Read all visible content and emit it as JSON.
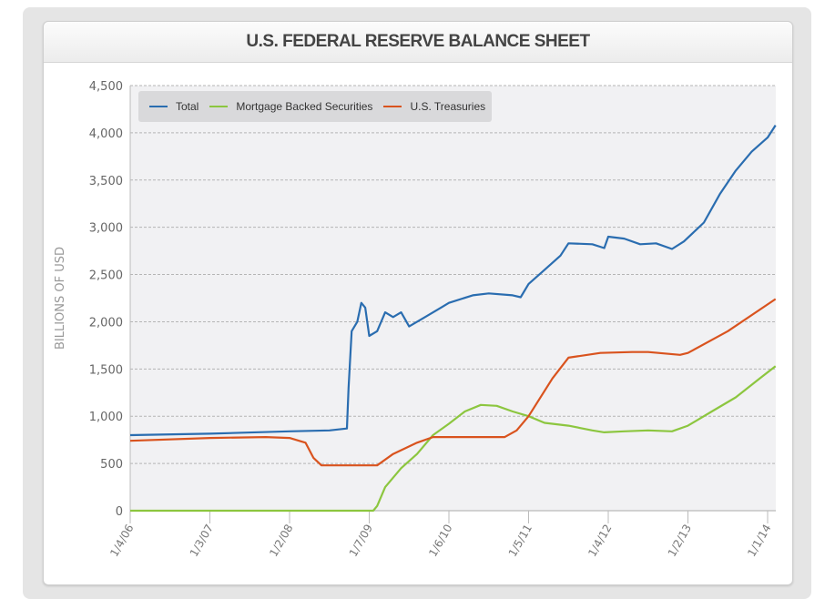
{
  "chart_data": {
    "type": "line",
    "title": "U.S. FEDERAL RESERVE BALANCE SHEET",
    "xlabel": "",
    "ylabel": "BILLIONS OF USD",
    "ylim": [
      0,
      4500
    ],
    "xlim": [
      2006.0,
      2014.1
    ],
    "yticks": [
      0,
      500,
      1000,
      1500,
      2000,
      2500,
      3000,
      3500,
      4000,
      4500
    ],
    "ytick_labels": [
      "0",
      "500",
      "1,000",
      "1,500",
      "2,000",
      "2,500",
      "3,000",
      "3,500",
      "4,000",
      "4,500"
    ],
    "xticks": [
      2006.0,
      2007.0,
      2008.0,
      2009.0,
      2010.0,
      2011.0,
      2012.0,
      2013.0,
      2014.0
    ],
    "xtick_labels": [
      "1/4/06",
      "1/3/07",
      "1/2/08",
      "1/7/09",
      "1/6/10",
      "1/5/11",
      "1/4/12",
      "1/2/13",
      "1/1/14"
    ],
    "grid": true,
    "legend_position": "top-left",
    "series": [
      {
        "name": "Total",
        "color": "#2a6db0",
        "x": [
          2006.0,
          2007.0,
          2008.0,
          2008.5,
          2008.72,
          2008.74,
          2008.78,
          2008.85,
          2008.9,
          2008.95,
          2009.0,
          2009.1,
          2009.2,
          2009.3,
          2009.4,
          2009.5,
          2009.7,
          2009.9,
          2010.0,
          2010.3,
          2010.5,
          2010.8,
          2010.9,
          2011.0,
          2011.2,
          2011.4,
          2011.5,
          2011.8,
          2011.95,
          2012.0,
          2012.2,
          2012.4,
          2012.6,
          2012.8,
          2012.95,
          2013.2,
          2013.4,
          2013.6,
          2013.8,
          2014.0,
          2014.1
        ],
        "y": [
          800,
          815,
          840,
          850,
          870,
          1300,
          1900,
          2000,
          2200,
          2150,
          1850,
          1900,
          2100,
          2050,
          2100,
          1950,
          2050,
          2150,
          2200,
          2280,
          2300,
          2280,
          2260,
          2400,
          2550,
          2700,
          2830,
          2820,
          2780,
          2900,
          2880,
          2820,
          2830,
          2770,
          2850,
          3050,
          3350,
          3600,
          3800,
          3950,
          4080
        ]
      },
      {
        "name": "Mortgage Backed Securities",
        "color": "#8cc63f",
        "x": [
          2006.0,
          2009.05,
          2009.1,
          2009.2,
          2009.4,
          2009.6,
          2009.8,
          2010.0,
          2010.2,
          2010.4,
          2010.6,
          2010.8,
          2011.0,
          2011.2,
          2011.5,
          2011.8,
          2011.95,
          2012.2,
          2012.5,
          2012.8,
          2013.0,
          2013.3,
          2013.6,
          2013.9,
          2014.1
        ],
        "y": [
          0,
          0,
          50,
          250,
          450,
          600,
          800,
          920,
          1050,
          1120,
          1110,
          1050,
          1000,
          930,
          900,
          850,
          830,
          840,
          850,
          840,
          900,
          1050,
          1200,
          1400,
          1530
        ]
      },
      {
        "name": "U.S. Treasuries",
        "color": "#d9531e",
        "x": [
          2006.0,
          2007.0,
          2007.7,
          2008.0,
          2008.2,
          2008.3,
          2008.4,
          2009.1,
          2009.3,
          2009.6,
          2009.8,
          2010.0,
          2010.7,
          2010.85,
          2011.0,
          2011.3,
          2011.5,
          2011.9,
          2012.3,
          2012.5,
          2012.9,
          2013.0,
          2013.5,
          2014.1
        ],
        "y": [
          740,
          770,
          780,
          770,
          720,
          560,
          480,
          480,
          600,
          720,
          780,
          780,
          780,
          850,
          1000,
          1400,
          1620,
          1670,
          1680,
          1680,
          1650,
          1670,
          1900,
          2240
        ]
      }
    ]
  }
}
